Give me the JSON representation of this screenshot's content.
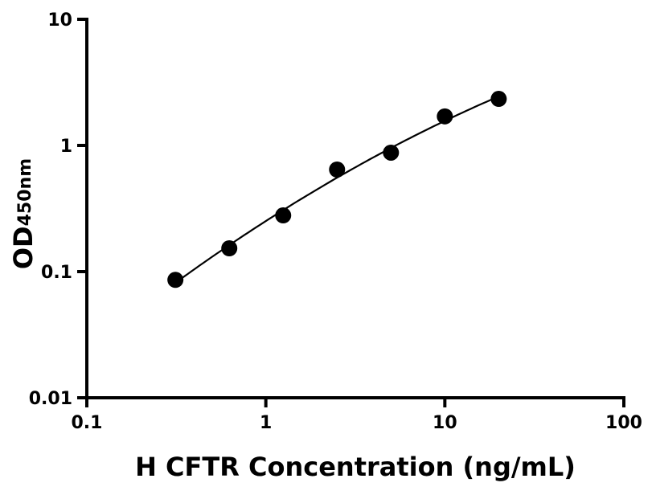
{
  "chart_data": {
    "type": "scatter",
    "title": "",
    "xlabel": "H CFTR Concentration (ng/mL)",
    "ylabel_main": "OD",
    "ylabel_sub": "450nm",
    "x_scale": "log",
    "y_scale": "log",
    "xlim": [
      0.1,
      100
    ],
    "ylim": [
      0.01,
      10
    ],
    "x_ticks": [
      0.1,
      1,
      10,
      100
    ],
    "x_tick_labels": [
      "0.1",
      "1",
      "10",
      "100"
    ],
    "y_ticks": [
      0.01,
      0.1,
      1,
      10
    ],
    "y_tick_labels": [
      "0.01",
      "0.1",
      "1",
      "10"
    ],
    "grid": false,
    "series": [
      {
        "x": [
          0.3125,
          0.625,
          1.25,
          2.5,
          5,
          10,
          20
        ],
        "y": [
          0.086,
          0.153,
          0.279,
          0.644,
          0.877,
          1.7,
          2.34
        ],
        "marker_color": "#000000",
        "fit_curve": true
      }
    ]
  }
}
